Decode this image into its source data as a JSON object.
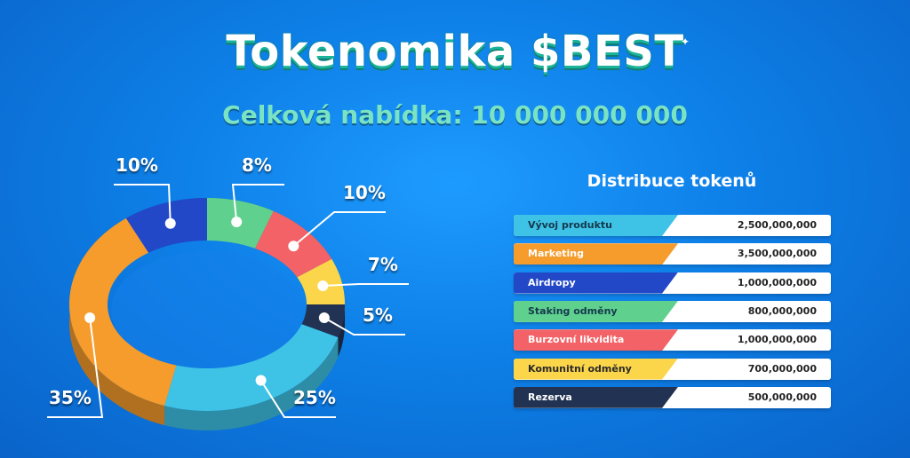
{
  "title": "Tokenomika $BEST",
  "subtitle": "Celková nabídka: 10 000 000 000",
  "legend_title": "Distribuce tokenů",
  "chart_data": {
    "type": "pie",
    "title": "Tokenomika $BEST",
    "subtitle": "Celková nabídka: 10 000 000 000",
    "style": "3d-donut",
    "categories": [
      "Vývoj produktu",
      "Marketing",
      "Airdropy",
      "Staking odměny",
      "Burzovní likvidita",
      "Komunitní odměny",
      "Rezerva"
    ],
    "values": [
      2500000000,
      3500000000,
      1000000000,
      800000000,
      1000000000,
      700000000,
      500000000
    ],
    "value_labels": [
      "2,500,000,000",
      "3,500,000,000",
      "1,000,000,000",
      "800,000,000",
      "1,000,000,000",
      "700,000,000",
      "500,000,000"
    ],
    "percent_labels": [
      "25%",
      "35%",
      "10%",
      "8%",
      "10%",
      "7%",
      "5%"
    ],
    "colors": [
      "#3ec3e6",
      "#f59c2c",
      "#2248c8",
      "#5fd08e",
      "#f26266",
      "#fbd54a",
      "#213252"
    ],
    "legend_position": "right"
  }
}
